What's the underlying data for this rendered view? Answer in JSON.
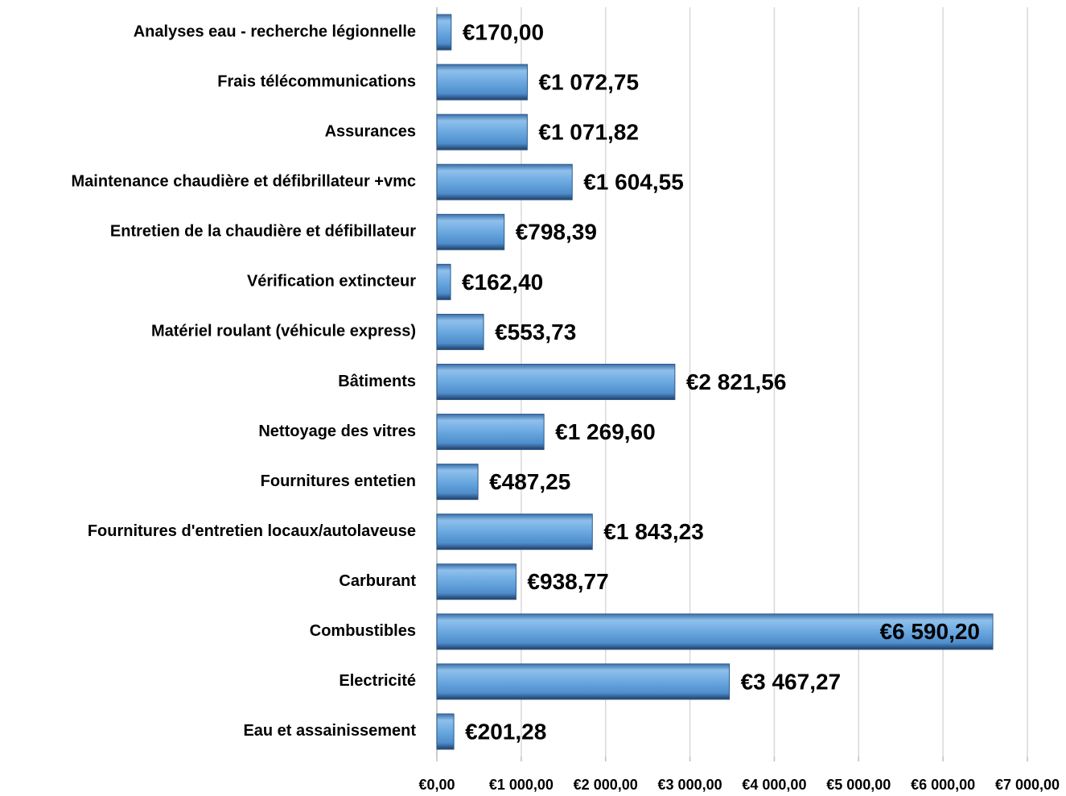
{
  "chart_data": {
    "type": "bar",
    "orientation": "horizontal",
    "categories": [
      "Analyses eau - recherche légionnelle",
      "Frais télécommunications",
      "Assurances",
      "Maintenance chaudière et défibrillateur +vmc",
      "Entretien de la chaudière et défibillateur",
      "Vérification extincteur",
      "Matériel roulant (véhicule express)",
      "Bâtiments",
      "Nettoyage des vitres",
      "Fournitures entetien",
      "Fournitures d'entretien locaux/autolaveuse",
      "Carburant",
      "Combustibles",
      "Electricité",
      "Eau et assainissement"
    ],
    "values": [
      170,
      1072.75,
      1071.82,
      1604.55,
      798.39,
      162.4,
      553.73,
      2821.56,
      1269.6,
      487.25,
      1843.23,
      938.77,
      6590.2,
      3467.27,
      201.28
    ],
    "value_labels": [
      "€170,00",
      "€1 072,75",
      "€1 071,82",
      "€1 604,55",
      "€798,39",
      "€162,40",
      "€553,73",
      "€2 821,56",
      "€1 269,60",
      "€487,25",
      "€1 843,23",
      "€938,77",
      "€6 590,20",
      "€3 467,27",
      "€201,28"
    ],
    "color": "#5b9bd5",
    "xlim": [
      0,
      7000
    ],
    "xticks": [
      {
        "value": 0,
        "label": "€0,00"
      },
      {
        "value": 1000,
        "label": "€1 000,00"
      },
      {
        "value": 2000,
        "label": "€2 000,00"
      },
      {
        "value": 3000,
        "label": "€3 000,00"
      },
      {
        "value": 4000,
        "label": "€4 000,00"
      },
      {
        "value": 5000,
        "label": "€5 000,00"
      },
      {
        "value": 6000,
        "label": "€6 000,00"
      },
      {
        "value": 7000,
        "label": "€7 000,00"
      }
    ],
    "grid": true
  }
}
